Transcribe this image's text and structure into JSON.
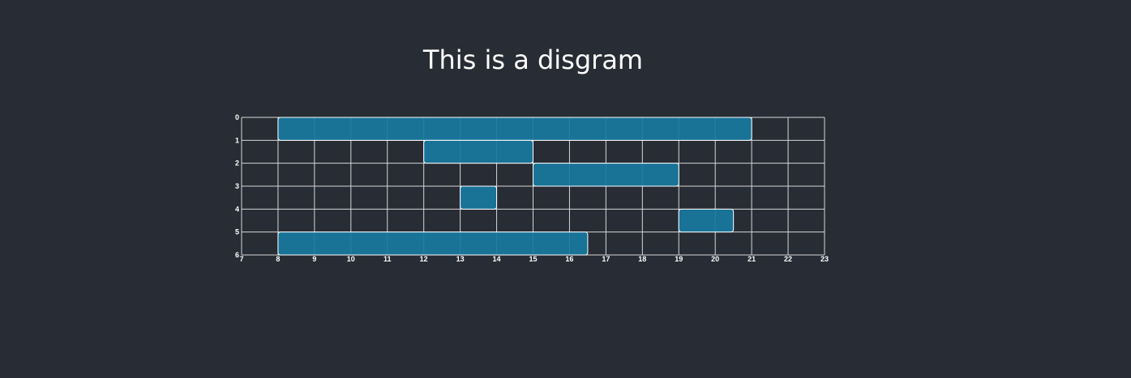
{
  "title": "This is a disgram",
  "colors": {
    "background": "#282c34",
    "bar_fill": "#17799f",
    "grid": "#d6d6d6",
    "text": "#ffffff"
  },
  "chart_data": {
    "type": "bar",
    "orientation": "horizontal-range",
    "title": "This is a disgram",
    "xlabel": "",
    "ylabel": "",
    "xlim": [
      7,
      23
    ],
    "ylim": [
      0,
      6
    ],
    "x_ticks": [
      7,
      8,
      9,
      10,
      11,
      12,
      13,
      14,
      15,
      16,
      17,
      18,
      19,
      20,
      21,
      22,
      23
    ],
    "y_ticks": [
      0,
      1,
      2,
      3,
      4,
      5,
      6
    ],
    "grid": true,
    "bars": [
      {
        "row": 0,
        "start": 8,
        "end": 21
      },
      {
        "row": 1,
        "start": 12,
        "end": 15
      },
      {
        "row": 2,
        "start": 15,
        "end": 19
      },
      {
        "row": 3,
        "start": 13,
        "end": 14
      },
      {
        "row": 4,
        "start": 19,
        "end": 20.5
      },
      {
        "row": 5,
        "start": 8,
        "end": 16.5
      }
    ]
  }
}
